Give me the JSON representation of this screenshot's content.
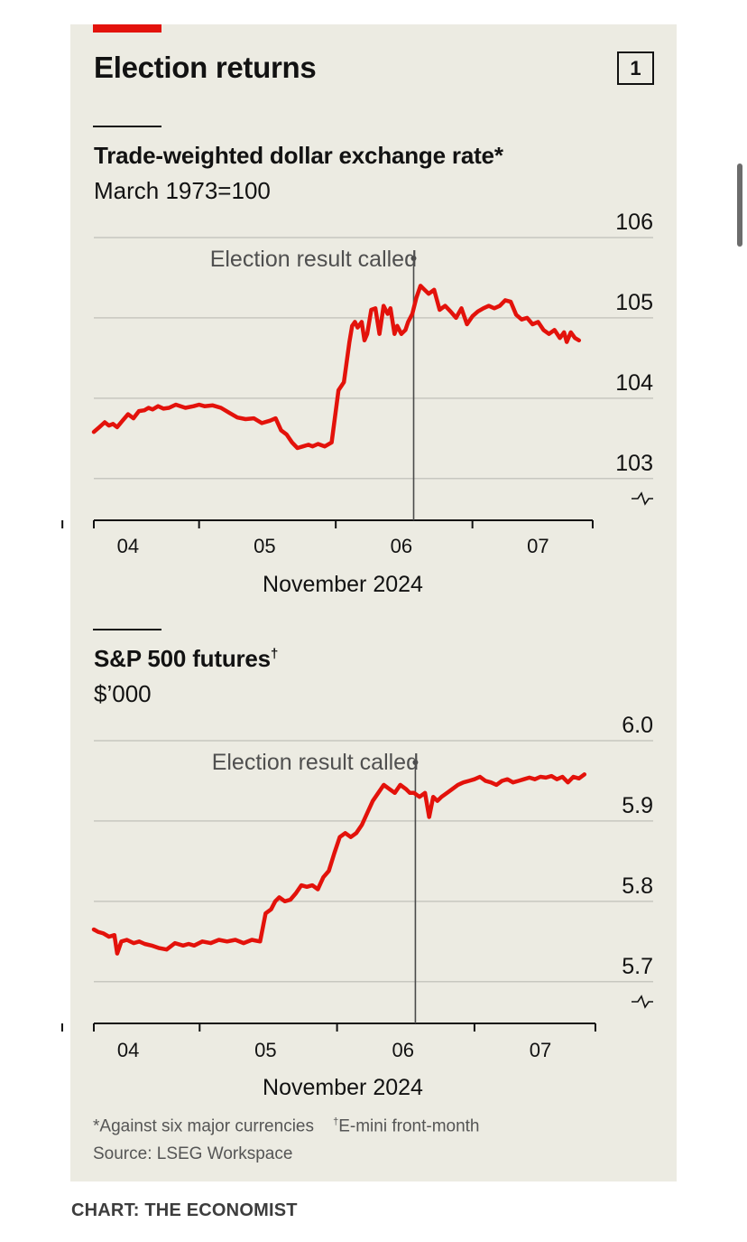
{
  "figure": {
    "title": "Election returns",
    "number": "1",
    "credit": "CHART: THE ECONOMIST",
    "footnote_left": "*Against six major currencies",
    "footnote_mark": "†",
    "footnote_right": "E-mini front-month",
    "source": "Source: LSEG Workspace",
    "colors": {
      "line": "#e3120b",
      "background": "#ecebe2",
      "grid": "#c7c7c0",
      "text": "#121212"
    }
  },
  "chart_data": [
    {
      "type": "line",
      "title": "Trade-weighted dollar exchange rate",
      "title_mark": "*",
      "subtitle": "March 1973=100",
      "xlabel": "November 2024",
      "ylabel": "",
      "x_unit": "day of November 2024 (fractional)",
      "xlim": [
        3.73,
        7.4
      ],
      "ylim": [
        102.75,
        106
      ],
      "yticks": [
        103,
        104,
        105,
        106
      ],
      "ytick_labels": [
        "103",
        "104",
        "105",
        "106"
      ],
      "xticks": [
        4,
        5,
        6,
        7
      ],
      "xtick_labels": [
        "04",
        "05",
        "06",
        "07"
      ],
      "axis_break": true,
      "annotation": {
        "text": "Election result called",
        "x": 6.07,
        "y": 105.75
      },
      "series": [
        {
          "x": [
            3.73,
            3.77,
            3.81,
            3.84,
            3.87,
            3.9,
            3.94,
            3.98,
            4.02,
            4.06,
            4.1,
            4.13,
            4.16,
            4.2,
            4.24,
            4.28,
            4.33,
            4.4,
            4.46,
            4.5,
            4.54,
            4.6,
            4.66,
            4.72,
            4.78,
            4.84,
            4.9,
            4.96,
            5.02,
            5.06,
            5.1,
            5.14,
            5.18,
            5.22,
            5.26,
            5.3,
            5.33,
            5.37,
            5.42,
            5.47,
            5.52,
            5.56,
            5.6,
            5.62,
            5.64,
            5.66,
            5.69,
            5.71,
            5.73,
            5.76,
            5.79,
            5.82,
            5.85,
            5.88,
            5.9,
            5.93,
            5.95,
            5.98,
            6.01,
            6.03,
            6.06,
            6.09,
            6.12,
            6.15,
            6.18,
            6.22,
            6.26,
            6.3,
            6.34,
            6.38,
            6.42,
            6.46,
            6.5,
            6.54,
            6.58,
            6.62,
            6.66,
            6.7,
            6.74,
            6.78,
            6.82,
            6.86,
            6.9,
            6.94,
            6.98,
            7.02,
            7.06,
            7.1,
            7.14,
            7.17,
            7.19,
            7.22,
            7.25,
            7.28
          ],
          "y": [
            103.58,
            103.64,
            103.7,
            103.66,
            103.68,
            103.64,
            103.72,
            103.8,
            103.75,
            103.84,
            103.85,
            103.88,
            103.86,
            103.9,
            103.87,
            103.88,
            103.92,
            103.88,
            103.9,
            103.92,
            103.9,
            103.91,
            103.88,
            103.82,
            103.76,
            103.74,
            103.75,
            103.69,
            103.72,
            103.75,
            103.6,
            103.55,
            103.45,
            103.38,
            103.4,
            103.42,
            103.4,
            103.43,
            103.4,
            103.45,
            104.1,
            104.2,
            104.7,
            104.9,
            104.95,
            104.88,
            104.95,
            104.72,
            104.8,
            105.1,
            105.12,
            104.8,
            105.15,
            105.05,
            105.12,
            104.8,
            104.9,
            104.8,
            104.85,
            104.95,
            105.05,
            105.25,
            105.4,
            105.35,
            105.3,
            105.35,
            105.1,
            105.15,
            105.08,
            105.0,
            105.12,
            104.92,
            105.02,
            105.08,
            105.12,
            105.15,
            105.12,
            105.15,
            105.22,
            105.2,
            105.04,
            104.98,
            105.0,
            104.92,
            104.95,
            104.85,
            104.8,
            104.85,
            104.75,
            104.82,
            104.7,
            104.82,
            104.75,
            104.72
          ]
        }
      ]
    },
    {
      "type": "line",
      "title": "S&P 500 futures",
      "title_mark": "†",
      "subtitle": "$’000",
      "xlabel": "November 2024",
      "ylabel": "",
      "x_unit": "day of November 2024 (fractional)",
      "xlim": [
        3.73,
        7.4
      ],
      "ylim": [
        5.675,
        6.0
      ],
      "yticks": [
        5.7,
        5.8,
        5.9,
        6.0
      ],
      "ytick_labels": [
        "5.7",
        "5.8",
        "5.9",
        "6.0"
      ],
      "xticks": [
        4,
        5,
        6,
        7
      ],
      "xtick_labels": [
        "04",
        "05",
        "06",
        "07"
      ],
      "axis_break": true,
      "annotation": {
        "text": "Election result called",
        "x": 6.07,
        "y": 5.975
      },
      "series": [
        {
          "x": [
            3.73,
            3.76,
            3.8,
            3.84,
            3.88,
            3.9,
            3.93,
            3.97,
            4.02,
            4.06,
            4.1,
            4.15,
            4.2,
            4.26,
            4.32,
            4.38,
            4.42,
            4.46,
            4.52,
            4.58,
            4.64,
            4.7,
            4.76,
            4.82,
            4.88,
            4.94,
            4.98,
            5.02,
            5.05,
            5.08,
            5.12,
            5.16,
            5.2,
            5.24,
            5.28,
            5.32,
            5.36,
            5.4,
            5.44,
            5.48,
            5.52,
            5.56,
            5.6,
            5.64,
            5.68,
            5.72,
            5.76,
            5.8,
            5.84,
            5.88,
            5.92,
            5.96,
            6.0,
            6.03,
            6.06,
            6.1,
            6.14,
            6.17,
            6.2,
            6.23,
            6.26,
            6.3,
            6.34,
            6.38,
            6.42,
            6.46,
            6.5,
            6.54,
            6.58,
            6.62,
            6.66,
            6.7,
            6.74,
            6.78,
            6.82,
            6.86,
            6.9,
            6.94,
            6.98,
            7.02,
            7.06,
            7.1,
            7.14,
            7.18,
            7.22,
            7.26,
            7.3
          ],
          "y": [
            5.765,
            5.762,
            5.76,
            5.756,
            5.758,
            5.735,
            5.75,
            5.752,
            5.748,
            5.75,
            5.747,
            5.745,
            5.742,
            5.74,
            5.748,
            5.745,
            5.747,
            5.745,
            5.75,
            5.748,
            5.752,
            5.75,
            5.752,
            5.748,
            5.752,
            5.75,
            5.785,
            5.79,
            5.8,
            5.805,
            5.8,
            5.802,
            5.81,
            5.82,
            5.818,
            5.82,
            5.815,
            5.83,
            5.838,
            5.86,
            5.88,
            5.885,
            5.88,
            5.885,
            5.895,
            5.91,
            5.925,
            5.935,
            5.945,
            5.94,
            5.935,
            5.945,
            5.94,
            5.935,
            5.935,
            5.93,
            5.935,
            5.905,
            5.93,
            5.925,
            5.93,
            5.935,
            5.94,
            5.945,
            5.948,
            5.95,
            5.952,
            5.955,
            5.95,
            5.948,
            5.945,
            5.95,
            5.952,
            5.948,
            5.95,
            5.952,
            5.954,
            5.952,
            5.955,
            5.954,
            5.956,
            5.952,
            5.955,
            5.948,
            5.955,
            5.953,
            5.958
          ]
        }
      ]
    }
  ]
}
